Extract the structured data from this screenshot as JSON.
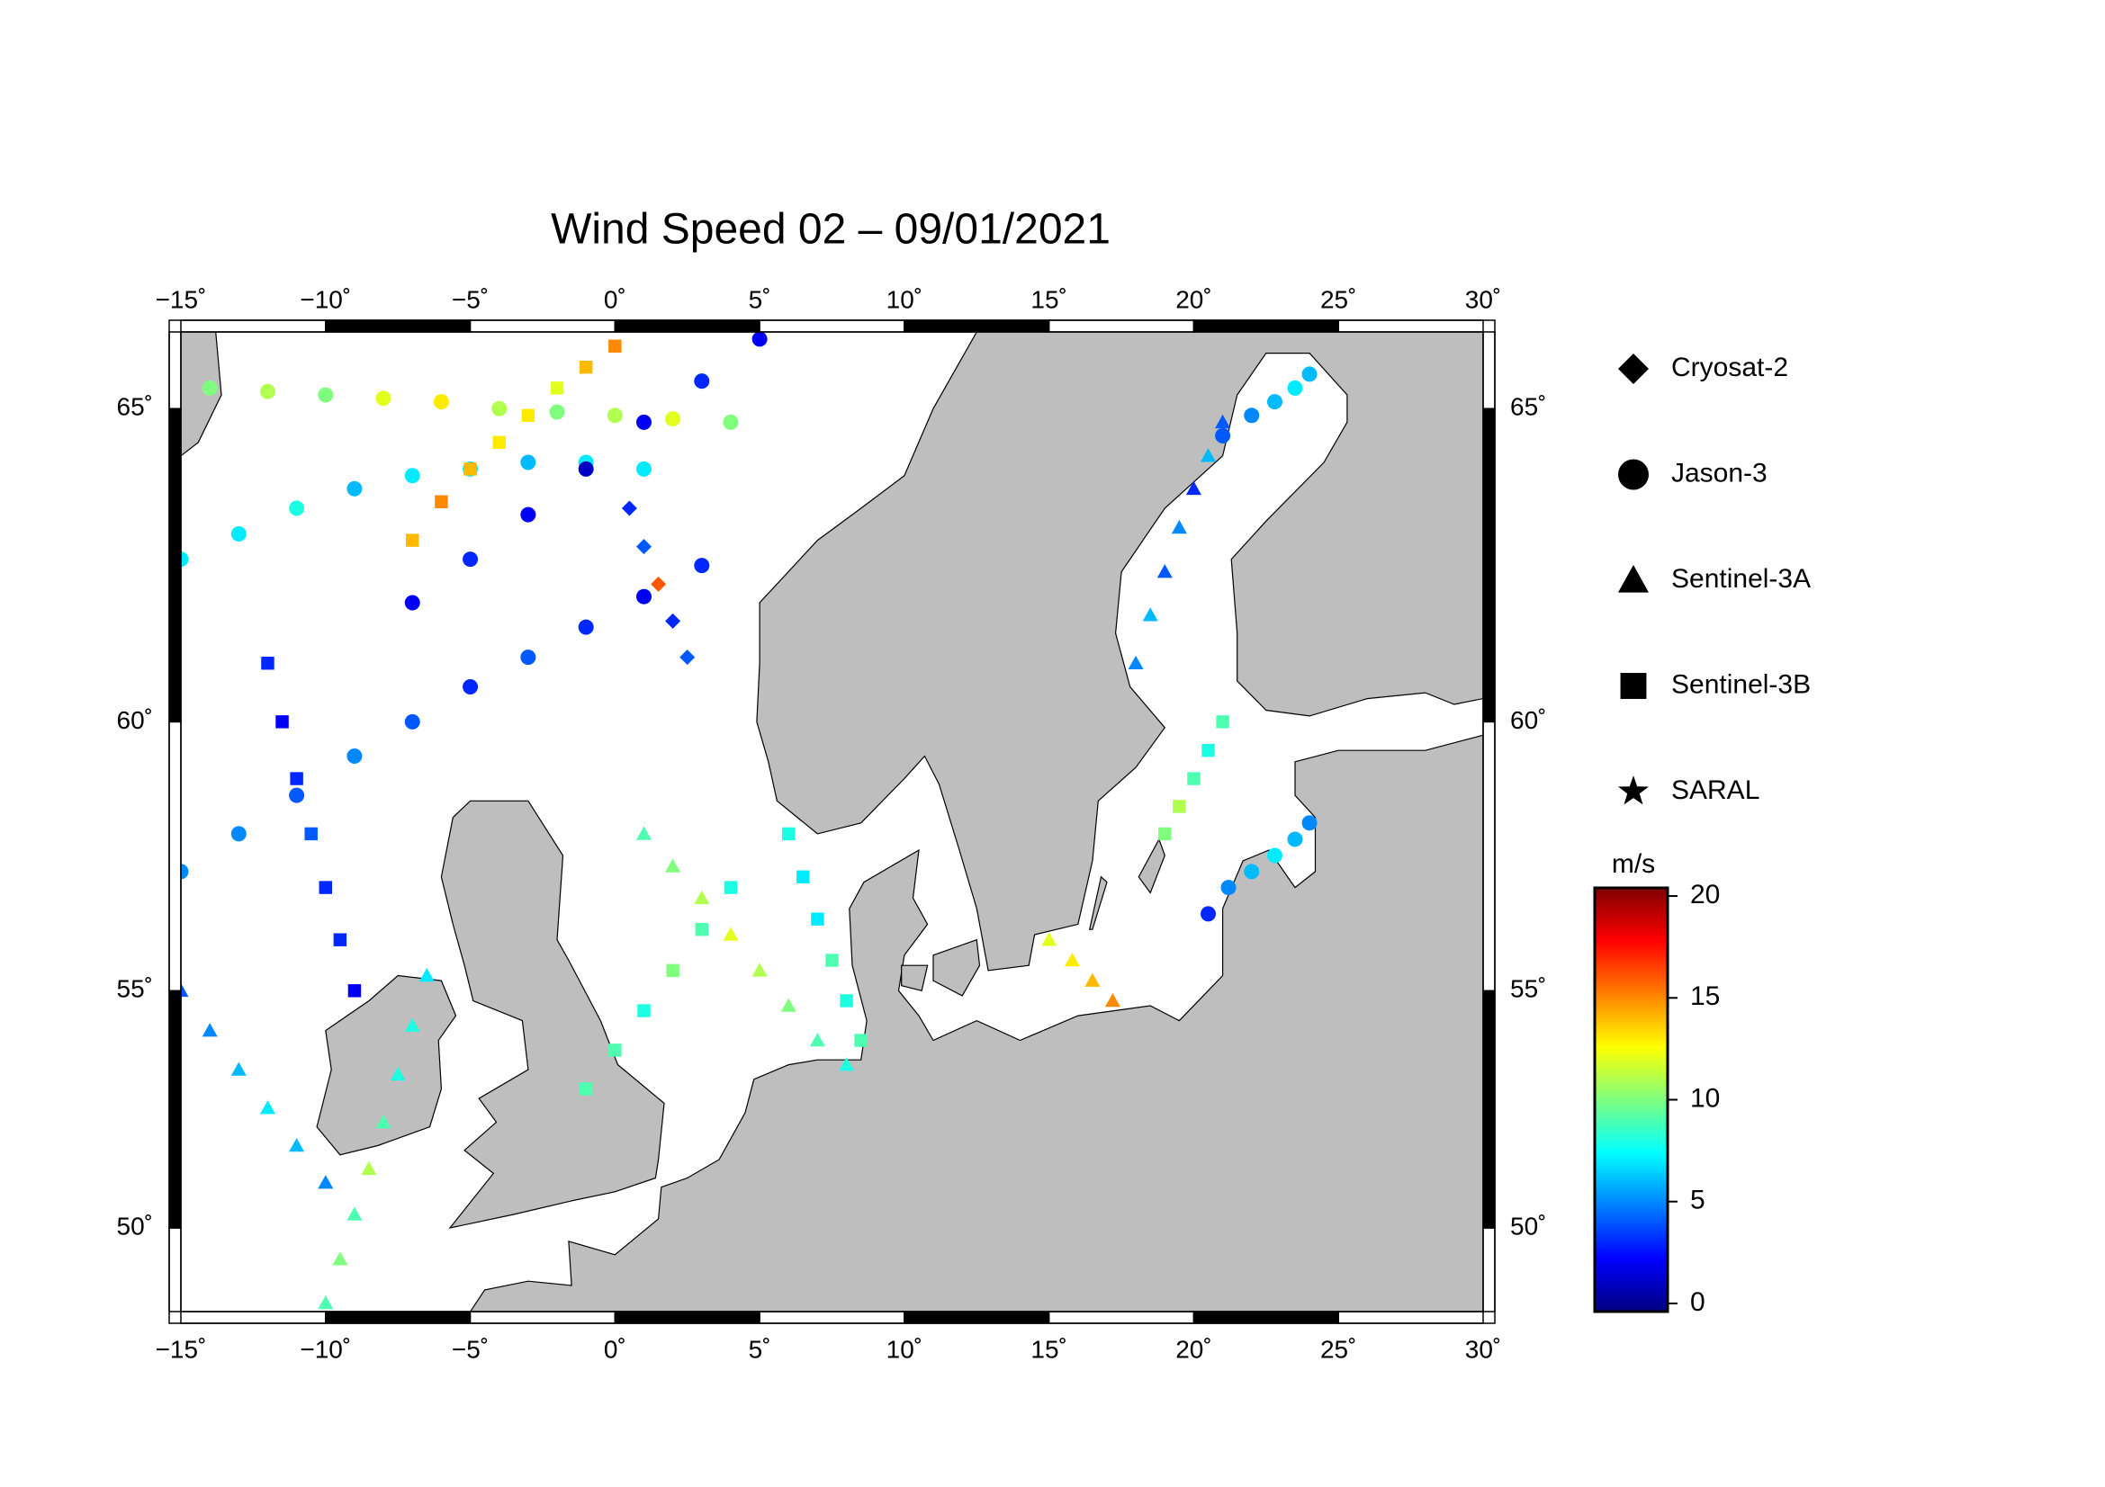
{
  "chart_data": {
    "type": "map",
    "title": "Wind Speed 02 – 09/01/2021",
    "xlim": [
      -15,
      30
    ],
    "ylim": [
      48.1,
      66.1
    ],
    "xticks": [
      {
        "value": -15,
        "label": "−15˚"
      },
      {
        "value": -10,
        "label": "−10˚"
      },
      {
        "value": -5,
        "label": "−5˚"
      },
      {
        "value": 0,
        "label": "0˚"
      },
      {
        "value": 5,
        "label": "5˚"
      },
      {
        "value": 10,
        "label": "10˚"
      },
      {
        "value": 15,
        "label": "15˚"
      },
      {
        "value": 20,
        "label": "20˚"
      },
      {
        "value": 25,
        "label": "25˚"
      },
      {
        "value": 30,
        "label": "30˚"
      }
    ],
    "yticks": [
      {
        "value": 50,
        "label": "50˚"
      },
      {
        "value": 55,
        "label": "55˚"
      },
      {
        "value": 60,
        "label": "60˚"
      },
      {
        "value": 65,
        "label": "65˚"
      }
    ],
    "grid": true,
    "projection": "mercator",
    "land_color": "#bebebe",
    "colormap": "jet",
    "colorbar": {
      "label": "m/s",
      "clim": [
        -0.4,
        20.4
      ],
      "ticks": [
        0,
        5,
        10,
        15,
        20
      ]
    },
    "series": [
      {
        "name": "Cryosat-2",
        "marker": "diamond",
        "lon": [
          0.5,
          1,
          1.5,
          2,
          2.5
        ],
        "lat": [
          63.5,
          62.9,
          62.3,
          61.7,
          61.1
        ],
        "values": [
          3,
          4,
          16,
          3,
          4
        ]
      },
      {
        "name": "Jason-3",
        "marker": "circle",
        "lon": [
          -14,
          -12,
          -10,
          -8,
          -6,
          -4,
          -2,
          0,
          2,
          4,
          -15,
          -13,
          -11,
          -9,
          -7,
          -5,
          -3,
          -1,
          1,
          3,
          -15,
          -13,
          -11,
          -9,
          -7,
          -5,
          -3,
          -1,
          1,
          -7,
          -5,
          -3,
          -1,
          1,
          3,
          5,
          21,
          22,
          22.8,
          23.5,
          24,
          20.5,
          21.2,
          22,
          22.8,
          23.5,
          24
        ],
        "lat": [
          65.3,
          65.25,
          65.2,
          65.15,
          65.1,
          65.0,
          64.95,
          64.9,
          64.85,
          64.8,
          57.3,
          58.0,
          58.7,
          59.4,
          60.0,
          60.6,
          61.1,
          61.6,
          62.1,
          62.6,
          62.7,
          63.1,
          63.5,
          63.8,
          64.0,
          64.1,
          64.2,
          64.2,
          64.1,
          62.0,
          62.7,
          63.4,
          64.1,
          64.8,
          65.4,
          66.0,
          64.6,
          64.9,
          65.1,
          65.3,
          65.5,
          56.5,
          57.0,
          57.3,
          57.6,
          57.9,
          58.2
        ],
        "values": [
          10,
          11,
          10,
          12,
          13,
          11,
          10,
          11,
          12,
          10,
          5,
          5,
          4,
          5,
          4,
          3,
          4,
          3,
          2,
          3,
          7,
          7,
          8,
          6,
          7,
          7,
          6,
          7,
          7,
          2,
          3,
          2,
          1,
          2,
          3,
          2,
          4,
          5,
          6,
          7,
          6,
          3,
          5,
          6,
          7,
          6,
          5
        ]
      },
      {
        "name": "Sentinel-3A",
        "marker": "triangle",
        "lon": [
          1,
          2,
          3,
          4,
          5,
          6,
          7,
          8,
          -10,
          -9.5,
          -9,
          -8.5,
          -8,
          -7.5,
          -7,
          -6.5,
          18,
          18.5,
          19,
          19.5,
          20,
          20.5,
          21,
          -15,
          -14,
          -13,
          -12,
          -11,
          -10,
          15,
          15.8,
          16.5,
          17.2
        ],
        "lat": [
          58,
          57.4,
          56.8,
          56.1,
          55.4,
          54.7,
          54.0,
          53.5,
          48.3,
          49.3,
          50.3,
          51.3,
          52.3,
          53.3,
          54.3,
          55.3,
          61,
          61.8,
          62.5,
          63.2,
          63.8,
          64.3,
          64.8,
          55,
          54.2,
          53.4,
          52.6,
          51.8,
          51,
          56,
          55.6,
          55.2,
          54.8
        ],
        "values": [
          9,
          10,
          11,
          12,
          11,
          10,
          9,
          8,
          9,
          10,
          9,
          11,
          9,
          8,
          8,
          7,
          5,
          6,
          4,
          5,
          3,
          6,
          4,
          4,
          5,
          6,
          7,
          6,
          5,
          12,
          13,
          14,
          15
        ]
      },
      {
        "name": "Sentinel-3B",
        "marker": "square",
        "lon": [
          6,
          6.5,
          7,
          7.5,
          8,
          8.5,
          -12,
          -11.5,
          -11,
          -10.5,
          -10,
          -9.5,
          -9,
          -7,
          -6,
          -5,
          -4,
          -3,
          -2,
          -1,
          0,
          -1,
          0,
          1,
          2,
          3,
          4,
          19,
          19.5,
          20,
          20.5,
          21
        ],
        "lat": [
          58,
          57.2,
          56.4,
          55.6,
          54.8,
          54,
          61,
          60,
          59,
          58,
          57,
          56,
          55,
          63,
          63.6,
          64.1,
          64.5,
          64.9,
          65.3,
          65.6,
          65.9,
          53,
          53.8,
          54.6,
          55.4,
          56.2,
          57,
          58,
          58.5,
          59,
          59.5,
          60
        ],
        "values": [
          8,
          7,
          7,
          9,
          8,
          9,
          3,
          2,
          3,
          4,
          3,
          3,
          2,
          14,
          15,
          14,
          13,
          13,
          12,
          14,
          15,
          9,
          9,
          8,
          10,
          9,
          8,
          10,
          11,
          9,
          8,
          9
        ]
      },
      {
        "name": "SARAL",
        "marker": "star",
        "lon": [],
        "lat": [],
        "values": []
      }
    ]
  }
}
